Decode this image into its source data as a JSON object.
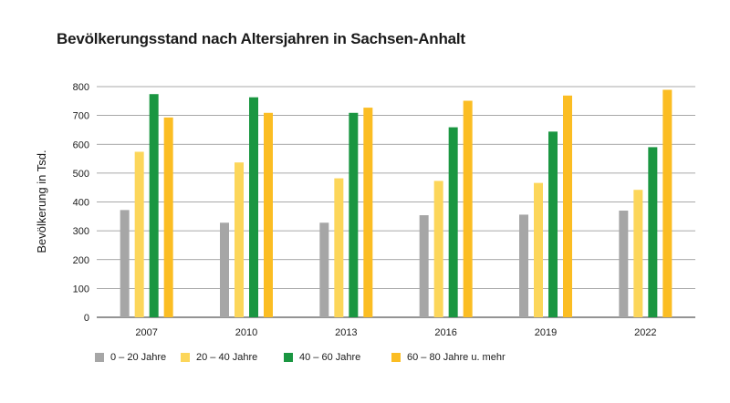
{
  "chart_data": {
    "type": "bar",
    "title": "Bevölkerungsstand nach Altersjahren in Sachsen-Anhalt",
    "ylabel": "Bevölkerung in Tsd.",
    "xlabel": "",
    "ylim": [
      0,
      800
    ],
    "yticks": [
      0,
      100,
      200,
      300,
      400,
      500,
      600,
      700,
      800
    ],
    "grid": true,
    "legend_position": "bottom",
    "categories": [
      "2007",
      "2010",
      "2013",
      "2016",
      "2019",
      "2022"
    ],
    "series": [
      {
        "name": "0 – 20 Jahre",
        "color": "#a6a6a6",
        "values": [
          372,
          328,
          328,
          354,
          356,
          370
        ]
      },
      {
        "name": "20 – 40 Jahre",
        "color": "#fcd65a",
        "values": [
          574,
          537,
          482,
          473,
          466,
          442
        ]
      },
      {
        "name": "40 – 60 Jahre",
        "color": "#1a9641",
        "values": [
          774,
          763,
          709,
          659,
          644,
          590
        ]
      },
      {
        "name": "60 – 80 Jahre u. mehr",
        "color": "#fbbd23",
        "values": [
          693,
          709,
          727,
          751,
          769,
          789
        ]
      }
    ]
  }
}
